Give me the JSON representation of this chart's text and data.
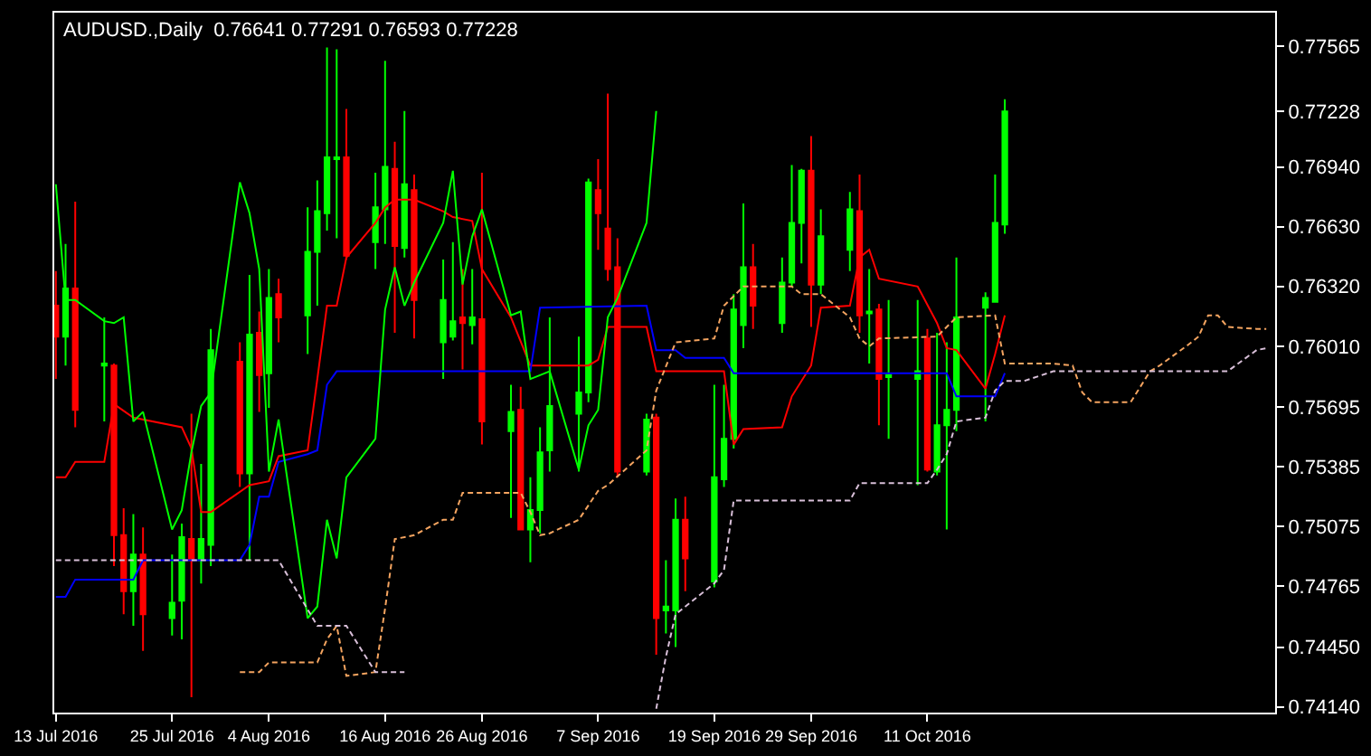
{
  "chart_data": {
    "type": "candlestick",
    "title": "AUDUSD.,Daily  0.76641 0.77291 0.76593 0.77228",
    "x": [
      "2016-07-13",
      "2016-07-14",
      "2016-07-15",
      "2016-07-18",
      "2016-07-19",
      "2016-07-20",
      "2016-07-21",
      "2016-07-22",
      "2016-07-25",
      "2016-07-26",
      "2016-07-27",
      "2016-07-28",
      "2016-07-29",
      "2016-08-01",
      "2016-08-02",
      "2016-08-03",
      "2016-08-04",
      "2016-08-05",
      "2016-08-08",
      "2016-08-09",
      "2016-08-10",
      "2016-08-11",
      "2016-08-12",
      "2016-08-15",
      "2016-08-16",
      "2016-08-17",
      "2016-08-18",
      "2016-08-19",
      "2016-08-22",
      "2016-08-23",
      "2016-08-24",
      "2016-08-25",
      "2016-08-26",
      "2016-08-29",
      "2016-08-30",
      "2016-08-31",
      "2016-09-01",
      "2016-09-02",
      "2016-09-05",
      "2016-09-06",
      "2016-09-07",
      "2016-09-08",
      "2016-09-09",
      "2016-09-12",
      "2016-09-13",
      "2016-09-14",
      "2016-09-15",
      "2016-09-16",
      "2016-09-19",
      "2016-09-20",
      "2016-09-21",
      "2016-09-22",
      "2016-09-23",
      "2016-09-26",
      "2016-09-27",
      "2016-09-28",
      "2016-09-29",
      "2016-09-30",
      "2016-10-03",
      "2016-10-04",
      "2016-10-05",
      "2016-10-06",
      "2016-10-07",
      "2016-10-10",
      "2016-10-11",
      "2016-10-12",
      "2016-10-13",
      "2016-10-14",
      "2016-10-17",
      "2016-10-18",
      "2016-10-19"
    ],
    "ohlc": [
      [
        0.7622,
        0.764,
        0.7584,
        0.7606
      ],
      [
        0.7606,
        0.7654,
        0.7591,
        0.7631
      ],
      [
        0.7631,
        0.7676,
        0.7559,
        0.7568
      ],
      [
        0.7591,
        0.7616,
        0.7562,
        0.7592
      ],
      [
        0.7591,
        0.7592,
        0.7487,
        0.7503
      ],
      [
        0.7503,
        0.7517,
        0.7462,
        0.7474
      ],
      [
        0.7474,
        0.7514,
        0.7456,
        0.7493
      ],
      [
        0.7493,
        0.7507,
        0.7443,
        0.7462
      ],
      [
        0.746,
        0.7493,
        0.7451,
        0.7468
      ],
      [
        0.7469,
        0.7509,
        0.7449,
        0.7502
      ],
      [
        0.7501,
        0.7566,
        0.7419,
        0.749
      ],
      [
        0.749,
        0.754,
        0.7478,
        0.7501
      ],
      [
        0.7498,
        0.761,
        0.7487,
        0.7599
      ],
      [
        0.7593,
        0.7603,
        0.7528,
        0.7535
      ],
      [
        0.7535,
        0.7638,
        0.749,
        0.7607
      ],
      [
        0.7608,
        0.7619,
        0.7567,
        0.7586
      ],
      [
        0.7587,
        0.7641,
        0.7569,
        0.7626
      ],
      [
        0.7628,
        0.7636,
        0.7603,
        0.7616
      ],
      [
        0.7617,
        0.7673,
        0.7597,
        0.765
      ],
      [
        0.765,
        0.7687,
        0.7622,
        0.7671
      ],
      [
        0.767,
        0.7756,
        0.7661,
        0.7699
      ],
      [
        0.7698,
        0.7755,
        0.7657,
        0.7699
      ],
      [
        0.7699,
        0.7724,
        0.7646,
        0.7648
      ],
      [
        0.7655,
        0.7691,
        0.7641,
        0.7673
      ],
      [
        0.7672,
        0.7749,
        0.7654,
        0.7694
      ],
      [
        0.7693,
        0.7707,
        0.7608,
        0.7653
      ],
      [
        0.7652,
        0.7723,
        0.7647,
        0.7685
      ],
      [
        0.7682,
        0.769,
        0.7605,
        0.7625
      ],
      [
        0.7603,
        0.7646,
        0.7584,
        0.7625
      ],
      [
        0.7606,
        0.7655,
        0.7604,
        0.7614
      ],
      [
        0.7616,
        0.7641,
        0.7589,
        0.7613
      ],
      [
        0.7612,
        0.7641,
        0.7602,
        0.7616
      ],
      [
        0.7615,
        0.7691,
        0.755,
        0.7562
      ],
      [
        0.7557,
        0.7581,
        0.7512,
        0.7567
      ],
      [
        0.7568,
        0.758,
        0.7506,
        0.7506
      ],
      [
        0.7506,
        0.7533,
        0.7489,
        0.7516
      ],
      [
        0.7516,
        0.7559,
        0.7504,
        0.7546
      ],
      [
        0.7547,
        0.7616,
        0.7536,
        0.757
      ],
      [
        0.7566,
        0.7606,
        0.7536,
        0.7577
      ],
      [
        0.7577,
        0.7688,
        0.7572,
        0.7686
      ],
      [
        0.7682,
        0.7698,
        0.7651,
        0.767
      ],
      [
        0.7662,
        0.7732,
        0.7635,
        0.7641
      ],
      [
        0.7642,
        0.7657,
        0.7533,
        0.7536
      ],
      [
        0.7536,
        0.7566,
        0.7534,
        0.7563
      ],
      [
        0.7564,
        0.7566,
        0.7441,
        0.746
      ],
      [
        0.7464,
        0.749,
        0.7452,
        0.7466
      ],
      [
        0.7464,
        0.7522,
        0.7445,
        0.7511
      ],
      [
        0.7511,
        0.7523,
        0.7474,
        0.7491
      ],
      [
        0.7479,
        0.7581,
        0.7476,
        0.7533
      ],
      [
        0.7532,
        0.7581,
        0.7528,
        0.7553
      ],
      [
        0.7553,
        0.7628,
        0.7548,
        0.762
      ],
      [
        0.7612,
        0.7675,
        0.76,
        0.7642
      ],
      [
        0.7642,
        0.7654,
        0.761,
        0.7622
      ],
      [
        0.7613,
        0.7647,
        0.7608,
        0.7634
      ],
      [
        0.7634,
        0.7695,
        0.7632,
        0.7665
      ],
      [
        0.7665,
        0.7693,
        0.7644,
        0.7692
      ],
      [
        0.7692,
        0.771,
        0.7611,
        0.7633
      ],
      [
        0.7633,
        0.7672,
        0.7628,
        0.7658
      ],
      [
        0.7651,
        0.7681,
        0.764,
        0.7672
      ],
      [
        0.7671,
        0.769,
        0.7608,
        0.7617
      ],
      [
        0.7618,
        0.7641,
        0.7592,
        0.7619
      ],
      [
        0.762,
        0.7623,
        0.756,
        0.7584
      ],
      [
        0.7585,
        0.7625,
        0.7553,
        0.7586
      ],
      [
        0.7584,
        0.7625,
        0.7529,
        0.7588
      ],
      [
        0.7605,
        0.761,
        0.7536,
        0.7537
      ],
      [
        0.7536,
        0.7608,
        0.7534,
        0.756
      ],
      [
        0.756,
        0.7603,
        0.7506,
        0.7568
      ],
      [
        0.7568,
        0.7647,
        0.7557,
        0.7616
      ],
      [
        0.7621,
        0.7629,
        0.7562,
        0.7626
      ],
      [
        0.7624,
        0.769,
        0.7624,
        0.7665
      ],
      [
        0.76641,
        0.77291,
        0.76593,
        0.77228
      ]
    ],
    "colors": [
      "#ff0000",
      "#00ff00",
      "#ff0000",
      "#00ff00",
      "#ff0000",
      "#ff0000",
      "#00ff00",
      "#ff0000",
      "#00ff00",
      "#00ff00",
      "#ff0000",
      "#00ff00",
      "#00ff00",
      "#ff0000",
      "#00ff00",
      "#ff0000",
      "#00ff00",
      "#ff0000",
      "#00ff00",
      "#00ff00",
      "#00ff00",
      "#00ff00",
      "#ff0000",
      "#00ff00",
      "#00ff00",
      "#ff0000",
      "#00ff00",
      "#ff0000",
      "#00ff00",
      "#00ff00",
      "#ff0000",
      "#00ff00",
      "#ff0000",
      "#00ff00",
      "#ff0000",
      "#00ff00",
      "#00ff00",
      "#00ff00",
      "#00ff00",
      "#00ff00",
      "#ff0000",
      "#ff0000",
      "#ff0000",
      "#00ff00",
      "#ff0000",
      "#00ff00",
      "#00ff00",
      "#ff0000",
      "#00ff00",
      "#00ff00",
      "#00ff00",
      "#00ff00",
      "#ff0000",
      "#00ff00",
      "#00ff00",
      "#00ff00",
      "#ff0000",
      "#00ff00",
      "#00ff00",
      "#ff0000",
      "#00ff00",
      "#ff0000",
      "#00ff00",
      "#00ff00",
      "#ff0000",
      "#00ff00",
      "#00ff00",
      "#00ff00",
      "#00ff00",
      "#00ff00",
      "#00ff00"
    ],
    "series": [
      {
        "type": "line",
        "color": "#ff0000",
        "line_style": "solid",
        "x": [
          "2016-07-13",
          "2016-07-14",
          "2016-07-15",
          "2016-07-18",
          "2016-07-19",
          "2016-07-21",
          "2016-07-26",
          "2016-07-27",
          "2016-07-28",
          "2016-07-29",
          "2016-08-02",
          "2016-08-04",
          "2016-08-05",
          "2016-08-08",
          "2016-08-09",
          "2016-08-10",
          "2016-08-11",
          "2016-08-12",
          "2016-08-15",
          "2016-08-16",
          "2016-08-17",
          "2016-08-19",
          "2016-08-22",
          "2016-08-23",
          "2016-08-25",
          "2016-08-26",
          "2016-08-29",
          "2016-08-31",
          "2016-09-06",
          "2016-09-07",
          "2016-09-08",
          "2016-09-12",
          "2016-09-13",
          "2016-09-20",
          "2016-09-21",
          "2016-09-22",
          "2016-09-26",
          "2016-09-27",
          "2016-09-29",
          "2016-09-30",
          "2016-10-03",
          "2016-10-04",
          "2016-10-05",
          "2016-10-06",
          "2016-10-10",
          "2016-10-12",
          "2016-10-13",
          "2016-10-14",
          "2016-10-17",
          "2016-10-18",
          "2016-10-19"
        ],
        "values": [
          0.7533,
          0.7533,
          0.7541,
          0.7541,
          0.7571,
          0.7564,
          0.7559,
          0.7548,
          0.7515,
          0.7515,
          0.7529,
          0.7531,
          0.7544,
          0.7547,
          0.7584,
          0.7622,
          0.7622,
          0.7647,
          0.7665,
          0.7673,
          0.7677,
          0.7677,
          0.7671,
          0.7668,
          0.7666,
          0.7641,
          0.7616,
          0.7591,
          0.7591,
          0.7594,
          0.7611,
          0.7611,
          0.7588,
          0.7588,
          0.755,
          0.7558,
          0.7559,
          0.7575,
          0.7591,
          0.7621,
          0.7622,
          0.7647,
          0.7651,
          0.7636,
          0.7632,
          0.7613,
          0.76,
          0.7599,
          0.7579,
          0.7597,
          0.7617
        ]
      },
      {
        "type": "line",
        "color": "#0000ff",
        "line_style": "solid",
        "x": [
          "2016-07-13",
          "2016-07-14",
          "2016-07-15",
          "2016-07-21",
          "2016-07-22",
          "2016-08-01",
          "2016-08-02",
          "2016-08-03",
          "2016-08-04",
          "2016-08-05",
          "2016-08-08",
          "2016-08-09",
          "2016-08-10",
          "2016-08-11",
          "2016-08-31",
          "2016-09-01",
          "2016-09-12",
          "2016-09-13",
          "2016-09-15",
          "2016-09-16",
          "2016-09-20",
          "2016-09-21",
          "2016-10-13",
          "2016-10-14",
          "2016-10-18",
          "2016-10-19"
        ],
        "values": [
          0.7471,
          0.7471,
          0.748,
          0.748,
          0.749,
          0.749,
          0.7498,
          0.7523,
          0.7523,
          0.7541,
          0.7545,
          0.7547,
          0.7581,
          0.7588,
          0.7588,
          0.7621,
          0.7622,
          0.7599,
          0.7599,
          0.7595,
          0.7595,
          0.7587,
          0.7587,
          0.7575,
          0.7575,
          0.7587
        ]
      },
      {
        "type": "line",
        "color": "#00ff00",
        "line_style": "solid",
        "x": [
          "2016-07-13",
          "2016-07-14",
          "2016-07-15",
          "2016-07-18",
          "2016-07-19",
          "2016-07-20",
          "2016-07-21",
          "2016-07-22",
          "2016-07-25",
          "2016-07-26",
          "2016-07-27",
          "2016-07-28",
          "2016-07-29",
          "2016-08-01",
          "2016-08-02",
          "2016-08-03",
          "2016-08-04",
          "2016-08-05",
          "2016-08-08",
          "2016-08-09",
          "2016-08-10",
          "2016-08-11",
          "2016-08-12",
          "2016-08-15",
          "2016-08-16",
          "2016-08-17",
          "2016-08-18",
          "2016-08-19",
          "2016-08-22",
          "2016-08-23",
          "2016-08-24",
          "2016-08-25",
          "2016-08-26",
          "2016-08-29",
          "2016-08-30",
          "2016-08-31",
          "2016-09-01",
          "2016-09-02",
          "2016-09-05",
          "2016-09-06",
          "2016-09-07",
          "2016-09-08",
          "2016-09-09",
          "2016-09-12",
          "2016-09-13"
        ],
        "values": [
          0.7685,
          0.7625,
          0.7625,
          0.7614,
          0.7613,
          0.7616,
          0.7562,
          0.7567,
          0.7506,
          0.7516,
          0.7546,
          0.757,
          0.7577,
          0.7686,
          0.767,
          0.7641,
          0.7536,
          0.7563,
          0.746,
          0.7466,
          0.7511,
          0.7491,
          0.7533,
          0.7553,
          0.762,
          0.7642,
          0.7622,
          0.7634,
          0.7665,
          0.7692,
          0.7633,
          0.7658,
          0.7672,
          0.7617,
          0.7619,
          0.7584,
          0.7586,
          0.7588,
          0.7537,
          0.756,
          0.7568,
          0.7616,
          0.7626,
          0.7665,
          0.7723
        ]
      },
      {
        "type": "line",
        "color": "#f4a460",
        "line_style": "dashed",
        "x": [
          "2016-08-01",
          "2016-08-03",
          "2016-08-04",
          "2016-08-09",
          "2016-08-10",
          "2016-08-11",
          "2016-08-12",
          "2016-08-15",
          "2016-08-16",
          "2016-08-17",
          "2016-08-19",
          "2016-08-22",
          "2016-08-23",
          "2016-08-24",
          "2016-08-30",
          "2016-08-31",
          "2016-09-01",
          "2016-09-02",
          "2016-09-05",
          "2016-09-07",
          "2016-09-08",
          "2016-09-12",
          "2016-09-13",
          "2016-09-15",
          "2016-09-19",
          "2016-09-20",
          "2016-09-21",
          "2016-09-22",
          "2016-09-27",
          "2016-09-28",
          "2016-09-30",
          "2016-10-03",
          "2016-10-04",
          "2016-10-05",
          "2016-10-06",
          "2016-10-12",
          "2016-10-14",
          "2016-10-18",
          "2016-10-19",
          "2016-10-24",
          "2016-10-26",
          "2016-10-27",
          "2016-10-28",
          "2016-11-01",
          "2016-11-03",
          "2016-11-04",
          "2016-11-07",
          "2016-11-08",
          "2016-11-09",
          "2016-11-10",
          "2016-11-11",
          "2016-11-14",
          "2016-11-15"
        ],
        "values": [
          0.7432,
          0.7432,
          0.7437,
          0.7437,
          0.7449,
          0.7456,
          0.743,
          0.7432,
          0.7465,
          0.7501,
          0.7503,
          0.7511,
          0.7511,
          0.7525,
          0.7525,
          0.7515,
          0.7503,
          0.7504,
          0.7511,
          0.7526,
          0.7529,
          0.7547,
          0.7578,
          0.7603,
          0.7605,
          0.7622,
          0.7627,
          0.7632,
          0.7632,
          0.7628,
          0.7628,
          0.7616,
          0.7605,
          0.7601,
          0.7605,
          0.7606,
          0.7616,
          0.7617,
          0.7592,
          0.7592,
          0.7591,
          0.7577,
          0.7572,
          0.7572,
          0.7588,
          0.7591,
          0.7602,
          0.7606,
          0.7617,
          0.7617,
          0.7611,
          0.761,
          0.761
        ]
      },
      {
        "type": "line",
        "color": "#d8bfd8",
        "line_style": "dashed",
        "x": [
          "2016-07-13",
          "2016-08-05",
          "2016-08-09",
          "2016-08-12",
          "2016-08-15",
          "2016-08-18",
          "2016-08-19",
          "2016-09-13",
          "2016-09-14",
          "2016-09-15",
          "2016-09-19",
          "2016-09-20",
          "2016-09-21",
          "2016-10-03",
          "2016-10-04",
          "2016-10-11",
          "2016-10-12",
          "2016-10-13",
          "2016-10-14",
          "2016-10-17",
          "2016-10-18",
          "2016-10-19",
          "2016-10-21",
          "2016-10-24",
          "2016-11-11",
          "2016-11-14",
          "2016-11-15"
        ],
        "values": [
          0.749,
          0.749,
          0.7456,
          0.7456,
          0.7432,
          0.7432,
          null,
          0.7413,
          0.744,
          0.7462,
          0.7478,
          0.7485,
          0.7521,
          0.7521,
          0.753,
          0.753,
          0.7537,
          0.7545,
          0.7562,
          0.7564,
          0.7578,
          0.7583,
          0.7583,
          0.7588,
          0.7588,
          0.7599,
          0.76
        ]
      }
    ],
    "xlim": [
      "2016-07-12T20:00",
      "2016-11-15T22:00"
    ],
    "xticks": [
      {
        "value": "2016-07-13",
        "label": "13 Jul 2016"
      },
      {
        "value": "2016-07-25",
        "label": "25 Jul 2016"
      },
      {
        "value": "2016-08-04",
        "label": "4 Aug 2016"
      },
      {
        "value": "2016-08-16",
        "label": "16 Aug 2016"
      },
      {
        "value": "2016-08-26",
        "label": "26 Aug 2016"
      },
      {
        "value": "2016-09-07",
        "label": "7 Sep 2016"
      },
      {
        "value": "2016-09-19",
        "label": "19 Sep 2016"
      },
      {
        "value": "2016-09-29",
        "label": "29 Sep 2016"
      },
      {
        "value": "2016-10-11",
        "label": "11 Oct 2016"
      }
    ],
    "ylim": [
      0.7411,
      0.7774
    ],
    "yticks": [
      0.77565,
      0.77228,
      {
        "value": 0.7694,
        "label": "0.76940"
      },
      {
        "value": 0.7663,
        "label": "0.76630"
      },
      {
        "value": 0.7632,
        "label": "0.76320"
      },
      {
        "value": 0.7601,
        "label": "0.76010"
      },
      0.75695,
      0.75385,
      0.75075,
      0.74765,
      {
        "value": 0.7445,
        "label": "0.74450"
      },
      {
        "value": 0.7414,
        "label": "0.74140"
      }
    ],
    "grid": false
  }
}
